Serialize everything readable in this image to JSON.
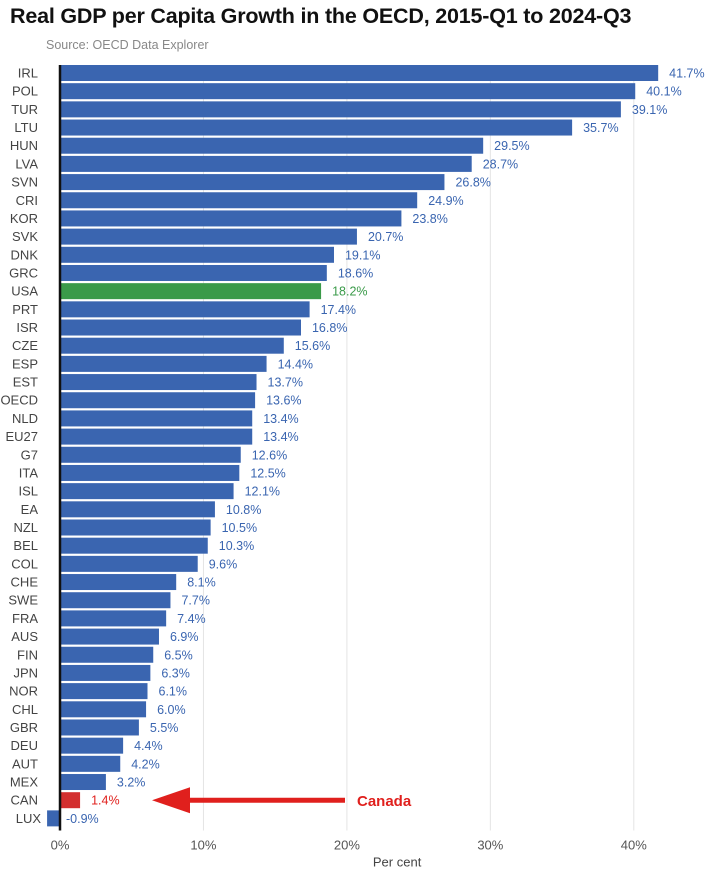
{
  "chart_data": {
    "type": "bar",
    "orientation": "horizontal",
    "title": "Real GDP per Capita Growth in the OECD, 2015-Q1 to 2024-Q3",
    "subtitle": "Source: OECD Data Explorer",
    "xlabel": "Per cent",
    "ylabel": "",
    "xlim": [
      0,
      45
    ],
    "x_ticks": [
      0,
      10,
      20,
      30,
      40
    ],
    "x_tick_labels": [
      "0%",
      "10%",
      "20%",
      "30%",
      "40%"
    ],
    "grid": "vertical",
    "categories": [
      "IRL",
      "POL",
      "TUR",
      "LTU",
      "HUN",
      "LVA",
      "SVN",
      "CRI",
      "KOR",
      "SVK",
      "DNK",
      "GRC",
      "USA",
      "PRT",
      "ISR",
      "CZE",
      "ESP",
      "EST",
      "OECD",
      "NLD",
      "EU27",
      "G7",
      "ITA",
      "ISL",
      "EA",
      "NZL",
      "BEL",
      "COL",
      "CHE",
      "SWE",
      "FRA",
      "AUS",
      "FIN",
      "JPN",
      "NOR",
      "CHL",
      "GBR",
      "DEU",
      "AUT",
      "MEX",
      "CAN",
      "LUX"
    ],
    "values": [
      41.7,
      40.1,
      39.1,
      35.7,
      29.5,
      28.7,
      26.8,
      24.9,
      23.8,
      20.7,
      19.1,
      18.6,
      18.2,
      17.4,
      16.8,
      15.6,
      14.4,
      13.7,
      13.6,
      13.4,
      13.4,
      12.6,
      12.5,
      12.1,
      10.8,
      10.5,
      10.3,
      9.6,
      8.1,
      7.7,
      7.4,
      6.9,
      6.5,
      6.3,
      6.1,
      6.0,
      5.5,
      4.4,
      4.2,
      3.2,
      1.4,
      -0.9
    ],
    "value_labels": [
      "41.7%",
      "40.1%",
      "39.1%",
      "35.7%",
      "29.5%",
      "28.7%",
      "26.8%",
      "24.9%",
      "23.8%",
      "20.7%",
      "19.1%",
      "18.6%",
      "18.2%",
      "17.4%",
      "16.8%",
      "15.6%",
      "14.4%",
      "13.7%",
      "13.6%",
      "13.4%",
      "13.4%",
      "12.6%",
      "12.5%",
      "12.1%",
      "10.8%",
      "10.5%",
      "10.3%",
      "9.6%",
      "8.1%",
      "7.7%",
      "7.4%",
      "6.9%",
      "6.5%",
      "6.3%",
      "6.1%",
      "6.0%",
      "5.5%",
      "4.4%",
      "4.2%",
      "3.2%",
      "1.4%",
      "-0.9%"
    ],
    "colors": {
      "default": "#3a65b0",
      "highlight_usa": "#3a9a49",
      "highlight_can": "#d32f2f",
      "label_default": "#3a65b0",
      "label_usa": "#3a9a49",
      "label_can": "#e0201d",
      "grid": "#e4e4e4",
      "axis": "#111111"
    },
    "highlights": {
      "USA": "highlight_usa",
      "CAN": "highlight_can"
    },
    "annotation": {
      "text": "Canada",
      "target": "CAN",
      "arrow": "left"
    }
  }
}
